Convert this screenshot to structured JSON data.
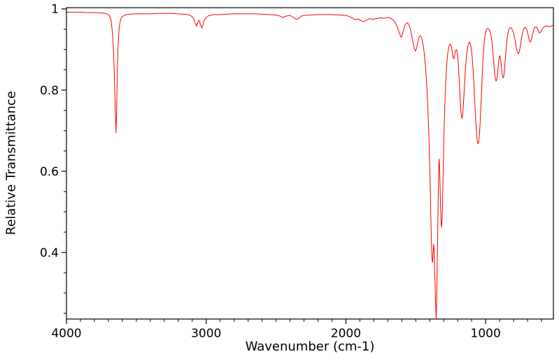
{
  "chart_data": {
    "type": "line",
    "title": "",
    "xlabel": "Wavenumber (cm-1)",
    "ylabel": "Relative Transmittance",
    "xlim": [
      4000,
      515
    ],
    "ylim": [
      0.236,
      1.003
    ],
    "x_axis_reversed": true,
    "grid": false,
    "legend": false,
    "background": "#ffffff",
    "axes_color": "#000000",
    "tick_label_color": "#000000",
    "tick_font_size": 17,
    "x_ticks": [
      {
        "value": 4000,
        "label": "4000"
      },
      {
        "value": 3000,
        "label": "3000"
      },
      {
        "value": 2000,
        "label": "2000"
      },
      {
        "value": 1000,
        "label": "1000"
      }
    ],
    "y_ticks": [
      {
        "value": 0.4,
        "label": "0.4"
      },
      {
        "value": 0.6,
        "label": "0.6"
      },
      {
        "value": 0.8,
        "label": "0.8"
      },
      {
        "value": 1.0,
        "label": "1"
      }
    ],
    "x_minor_tick_step": 100,
    "y_minor_tick_step": 0.05,
    "series": [
      {
        "color": "#ff0000",
        "points": [
          [
            4000,
            0.992
          ],
          [
            3950,
            0.992
          ],
          [
            3900,
            0.992
          ],
          [
            3850,
            0.991
          ],
          [
            3800,
            0.991
          ],
          [
            3750,
            0.99
          ],
          [
            3720,
            0.989
          ],
          [
            3700,
            0.986
          ],
          [
            3690,
            0.982
          ],
          [
            3680,
            0.971
          ],
          [
            3670,
            0.938
          ],
          [
            3662,
            0.885
          ],
          [
            3656,
            0.82
          ],
          [
            3650,
            0.745
          ],
          [
            3645,
            0.695
          ],
          [
            3641,
            0.75
          ],
          [
            3636,
            0.845
          ],
          [
            3630,
            0.915
          ],
          [
            3622,
            0.957
          ],
          [
            3612,
            0.974
          ],
          [
            3600,
            0.981
          ],
          [
            3580,
            0.985
          ],
          [
            3550,
            0.987
          ],
          [
            3500,
            0.988
          ],
          [
            3450,
            0.988
          ],
          [
            3400,
            0.988
          ],
          [
            3350,
            0.989
          ],
          [
            3300,
            0.989
          ],
          [
            3250,
            0.989
          ],
          [
            3200,
            0.988
          ],
          [
            3150,
            0.987
          ],
          [
            3120,
            0.985
          ],
          [
            3100,
            0.981
          ],
          [
            3090,
            0.976
          ],
          [
            3080,
            0.967
          ],
          [
            3070,
            0.958
          ],
          [
            3064,
            0.963
          ],
          [
            3058,
            0.969
          ],
          [
            3050,
            0.972
          ],
          [
            3040,
            0.961
          ],
          [
            3031,
            0.953
          ],
          [
            3022,
            0.962
          ],
          [
            3012,
            0.973
          ],
          [
            3000,
            0.979
          ],
          [
            2985,
            0.983
          ],
          [
            2965,
            0.985
          ],
          [
            2940,
            0.986
          ],
          [
            2900,
            0.986
          ],
          [
            2850,
            0.987
          ],
          [
            2800,
            0.988
          ],
          [
            2750,
            0.988
          ],
          [
            2700,
            0.988
          ],
          [
            2650,
            0.988
          ],
          [
            2600,
            0.987
          ],
          [
            2550,
            0.986
          ],
          [
            2500,
            0.985
          ],
          [
            2470,
            0.982
          ],
          [
            2452,
            0.979
          ],
          [
            2438,
            0.981
          ],
          [
            2420,
            0.983
          ],
          [
            2400,
            0.984
          ],
          [
            2372,
            0.978
          ],
          [
            2352,
            0.974
          ],
          [
            2338,
            0.977
          ],
          [
            2320,
            0.982
          ],
          [
            2300,
            0.984
          ],
          [
            2250,
            0.985
          ],
          [
            2200,
            0.986
          ],
          [
            2150,
            0.986
          ],
          [
            2100,
            0.986
          ],
          [
            2050,
            0.985
          ],
          [
            2000,
            0.984
          ],
          [
            1972,
            0.981
          ],
          [
            1950,
            0.977
          ],
          [
            1932,
            0.973
          ],
          [
            1912,
            0.975
          ],
          [
            1892,
            0.971
          ],
          [
            1872,
            0.969
          ],
          [
            1850,
            0.973
          ],
          [
            1830,
            0.976
          ],
          [
            1810,
            0.974
          ],
          [
            1790,
            0.976
          ],
          [
            1770,
            0.977
          ],
          [
            1750,
            0.978
          ],
          [
            1730,
            0.977
          ],
          [
            1710,
            0.978
          ],
          [
            1695,
            0.979
          ],
          [
            1680,
            0.977
          ],
          [
            1660,
            0.973
          ],
          [
            1642,
            0.963
          ],
          [
            1626,
            0.95
          ],
          [
            1614,
            0.937
          ],
          [
            1605,
            0.93
          ],
          [
            1597,
            0.935
          ],
          [
            1589,
            0.947
          ],
          [
            1580,
            0.958
          ],
          [
            1570,
            0.964
          ],
          [
            1561,
            0.966
          ],
          [
            1551,
            0.962
          ],
          [
            1541,
            0.953
          ],
          [
            1531,
            0.938
          ],
          [
            1521,
            0.92
          ],
          [
            1511,
            0.903
          ],
          [
            1503,
            0.896
          ],
          [
            1496,
            0.901
          ],
          [
            1489,
            0.913
          ],
          [
            1482,
            0.924
          ],
          [
            1475,
            0.931
          ],
          [
            1468,
            0.934
          ],
          [
            1460,
            0.93
          ],
          [
            1452,
            0.92
          ],
          [
            1445,
            0.906
          ],
          [
            1438,
            0.886
          ],
          [
            1430,
            0.856
          ],
          [
            1422,
            0.816
          ],
          [
            1415,
            0.766
          ],
          [
            1408,
            0.702
          ],
          [
            1402,
            0.632
          ],
          [
            1396,
            0.552
          ],
          [
            1392,
            0.482
          ],
          [
            1388,
            0.422
          ],
          [
            1384,
            0.386
          ],
          [
            1380,
            0.375
          ],
          [
            1376,
            0.394
          ],
          [
            1372,
            0.42
          ],
          [
            1369,
            0.411
          ],
          [
            1366,
            0.381
          ],
          [
            1363,
            0.341
          ],
          [
            1360,
            0.301
          ],
          [
            1357,
            0.266
          ],
          [
            1354,
            0.236
          ],
          [
            1351,
            0.272
          ],
          [
            1348,
            0.331
          ],
          [
            1345,
            0.4
          ],
          [
            1342,
            0.47
          ],
          [
            1339,
            0.541
          ],
          [
            1336,
            0.6
          ],
          [
            1333,
            0.63
          ],
          [
            1330,
            0.616
          ],
          [
            1327,
            0.576
          ],
          [
            1324,
            0.531
          ],
          [
            1321,
            0.496
          ],
          [
            1318,
            0.471
          ],
          [
            1315,
            0.462
          ],
          [
            1312,
            0.478
          ],
          [
            1309,
            0.511
          ],
          [
            1306,
            0.556
          ],
          [
            1303,
            0.611
          ],
          [
            1300,
            0.666
          ],
          [
            1295,
            0.731
          ],
          [
            1290,
            0.786
          ],
          [
            1285,
            0.826
          ],
          [
            1280,
            0.856
          ],
          [
            1275,
            0.878
          ],
          [
            1270,
            0.893
          ],
          [
            1265,
            0.903
          ],
          [
            1260,
            0.91
          ],
          [
            1255,
            0.913
          ],
          [
            1250,
            0.912
          ],
          [
            1245,
            0.906
          ],
          [
            1240,
            0.897
          ],
          [
            1235,
            0.885
          ],
          [
            1230,
            0.877
          ],
          [
            1225,
            0.88
          ],
          [
            1220,
            0.89
          ],
          [
            1215,
            0.898
          ],
          [
            1210,
            0.9
          ],
          [
            1205,
            0.896
          ],
          [
            1200,
            0.884
          ],
          [
            1195,
            0.862
          ],
          [
            1190,
            0.832
          ],
          [
            1185,
            0.796
          ],
          [
            1180,
            0.762
          ],
          [
            1175,
            0.741
          ],
          [
            1170,
            0.73
          ],
          [
            1165,
            0.738
          ],
          [
            1160,
            0.76
          ],
          [
            1155,
            0.79
          ],
          [
            1150,
            0.822
          ],
          [
            1145,
            0.85
          ],
          [
            1140,
            0.872
          ],
          [
            1135,
            0.89
          ],
          [
            1130,
            0.903
          ],
          [
            1125,
            0.912
          ],
          [
            1120,
            0.917
          ],
          [
            1115,
            0.918
          ],
          [
            1110,
            0.915
          ],
          [
            1105,
            0.907
          ],
          [
            1100,
            0.894
          ],
          [
            1095,
            0.875
          ],
          [
            1090,
            0.85
          ],
          [
            1085,
            0.82
          ],
          [
            1080,
            0.785
          ],
          [
            1075,
            0.75
          ],
          [
            1070,
            0.718
          ],
          [
            1065,
            0.692
          ],
          [
            1060,
            0.675
          ],
          [
            1055,
            0.668
          ],
          [
            1050,
            0.672
          ],
          [
            1045,
            0.688
          ],
          [
            1040,
            0.716
          ],
          [
            1035,
            0.75
          ],
          [
            1030,
            0.79
          ],
          [
            1025,
            0.83
          ],
          [
            1020,
            0.866
          ],
          [
            1015,
            0.895
          ],
          [
            1010,
            0.917
          ],
          [
            1005,
            0.932
          ],
          [
            1000,
            0.942
          ],
          [
            995,
            0.948
          ],
          [
            990,
            0.951
          ],
          [
            985,
            0.952
          ],
          [
            980,
            0.951
          ],
          [
            975,
            0.949
          ],
          [
            970,
            0.945
          ],
          [
            965,
            0.94
          ],
          [
            960,
            0.932
          ],
          [
            955,
            0.92
          ],
          [
            950,
            0.903
          ],
          [
            945,
            0.882
          ],
          [
            940,
            0.86
          ],
          [
            935,
            0.84
          ],
          [
            930,
            0.827
          ],
          [
            925,
            0.822
          ],
          [
            920,
            0.827
          ],
          [
            915,
            0.84
          ],
          [
            910,
            0.858
          ],
          [
            905,
            0.875
          ],
          [
            900,
            0.885
          ],
          [
            895,
            0.882
          ],
          [
            890,
            0.868
          ],
          [
            885,
            0.85
          ],
          [
            880,
            0.836
          ],
          [
            875,
            0.83
          ],
          [
            870,
            0.835
          ],
          [
            865,
            0.85
          ],
          [
            860,
            0.872
          ],
          [
            855,
            0.895
          ],
          [
            850,
            0.915
          ],
          [
            845,
            0.93
          ],
          [
            840,
            0.941
          ],
          [
            835,
            0.948
          ],
          [
            830,
            0.952
          ],
          [
            825,
            0.954
          ],
          [
            820,
            0.954
          ],
          [
            815,
            0.952
          ],
          [
            810,
            0.949
          ],
          [
            805,
            0.945
          ],
          [
            800,
            0.94
          ],
          [
            795,
            0.933
          ],
          [
            790,
            0.924
          ],
          [
            785,
            0.914
          ],
          [
            780,
            0.904
          ],
          [
            775,
            0.896
          ],
          [
            770,
            0.891
          ],
          [
            765,
            0.89
          ],
          [
            760,
            0.894
          ],
          [
            755,
            0.902
          ],
          [
            750,
            0.913
          ],
          [
            745,
            0.924
          ],
          [
            740,
            0.934
          ],
          [
            735,
            0.942
          ],
          [
            730,
            0.948
          ],
          [
            725,
            0.952
          ],
          [
            720,
            0.954
          ],
          [
            715,
            0.954
          ],
          [
            710,
            0.952
          ],
          [
            705,
            0.948
          ],
          [
            700,
            0.942
          ],
          [
            695,
            0.934
          ],
          [
            690,
            0.926
          ],
          [
            685,
            0.92
          ],
          [
            680,
            0.918
          ],
          [
            675,
            0.921
          ],
          [
            670,
            0.928
          ],
          [
            665,
            0.936
          ],
          [
            660,
            0.943
          ],
          [
            655,
            0.949
          ],
          [
            650,
            0.953
          ],
          [
            645,
            0.955
          ],
          [
            640,
            0.956
          ],
          [
            635,
            0.955
          ],
          [
            630,
            0.952
          ],
          [
            625,
            0.948
          ],
          [
            620,
            0.944
          ],
          [
            615,
            0.941
          ],
          [
            610,
            0.941
          ],
          [
            605,
            0.944
          ],
          [
            600,
            0.948
          ],
          [
            590,
            0.953
          ],
          [
            580,
            0.956
          ],
          [
            570,
            0.958
          ],
          [
            560,
            0.958
          ],
          [
            550,
            0.957
          ],
          [
            540,
            0.957
          ],
          [
            530,
            0.958
          ],
          [
            520,
            0.959
          ],
          [
            515,
            0.96
          ]
        ]
      }
    ]
  }
}
